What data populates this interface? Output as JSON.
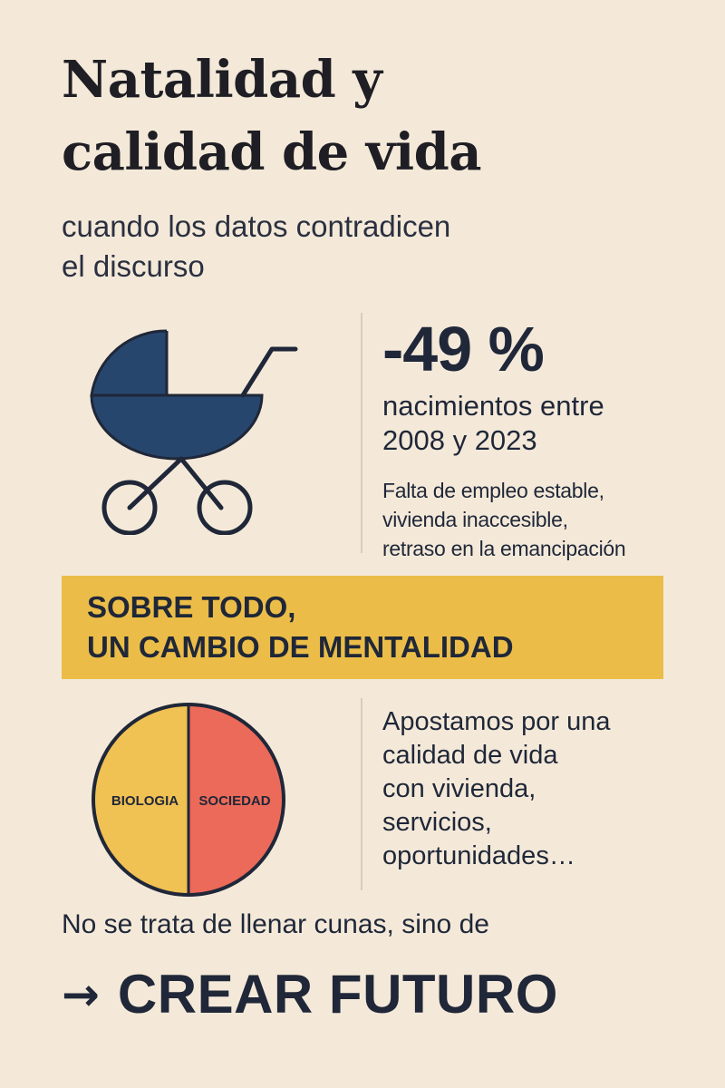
{
  "header": {
    "title_line1": "Natalidad y",
    "title_line2": "calidad de vida",
    "subtitle_line1": "cuando los datos contradicen",
    "subtitle_line2": "el discurso"
  },
  "stat": {
    "value": "-49 %",
    "label_line1": "nacimientos entre",
    "label_line2": "2008 y 2023",
    "causes_line1": "Falta de empleo estable,",
    "causes_line2": "vivienda inaccesible,",
    "causes_line3": "retraso en la emancipación"
  },
  "banner": {
    "line1": "SOBRE TODO,",
    "line2": "UN CAMBIO DE MENTALIDAD"
  },
  "pie": {
    "left_label": "BIOLOGIA",
    "right_label": "SOCIEDAD",
    "left_color": "#f0c153",
    "right_color": "#ec6a59"
  },
  "proposal": {
    "line1": "Apostamos por una",
    "line2": "calidad de vida",
    "line3": "con vivienda,",
    "line4": "servicios,",
    "line5": "oportunidades…"
  },
  "closing": {
    "text": "No se trata de llenar cunas, sino de",
    "arrow_icon": "arrow-right-icon",
    "cta": "CREAR FUTURO"
  },
  "colors": {
    "background": "#f4e9d9",
    "navy": "#1f2738",
    "stroller": "#27466e",
    "banner": "#ebbd48"
  }
}
